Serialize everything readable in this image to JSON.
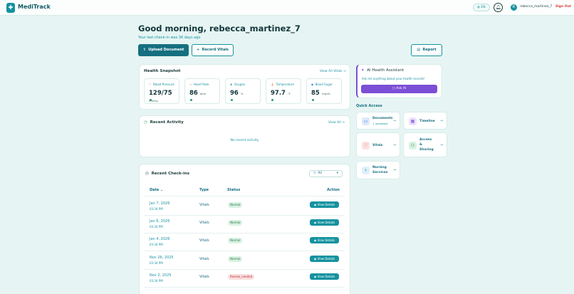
{
  "header": {
    "brand": "MediTrack",
    "lang": "EN",
    "username": "rebecca_martinez_7",
    "signout": "Sign Out",
    "avatar_initial": "R"
  },
  "greeting": {
    "title": "Good morning, rebecca_martinez_7",
    "subtitle": "Your last check-in was 36 days ago"
  },
  "actions": {
    "upload": "Upload Document",
    "record": "Record Vitals",
    "report": "Report"
  },
  "snapshot": {
    "title": "Health Snapshot",
    "link": "View All Vitals",
    "vitals": [
      {
        "label": "Blood Pressure",
        "value": "129/75",
        "unit": "mmHg",
        "icon": "heart-icon",
        "color": "#d33b3b"
      },
      {
        "label": "Heart Rate",
        "value": "86",
        "unit": "bpm",
        "icon": "pulse-icon",
        "color": "#e0782b"
      },
      {
        "label": "Oxygen",
        "value": "96",
        "unit": "%",
        "icon": "lungs-icon",
        "color": "#2aa06a"
      },
      {
        "label": "Temperature",
        "value": "97.7",
        "unit": "°F",
        "icon": "thermometer-icon",
        "color": "#e0782b"
      },
      {
        "label": "Blood Sugar",
        "value": "85",
        "unit": "mg/dL",
        "icon": "drop-icon",
        "color": "#3a7bd5"
      }
    ]
  },
  "activity": {
    "title": "Recent Activity",
    "link": "View All",
    "empty": "No recent activity"
  },
  "checkins": {
    "title": "Recent Check-ins",
    "filter": "All",
    "columns": {
      "date": "Date",
      "type": "Type",
      "status": "Status",
      "action": "Action"
    },
    "view_label": "View Details",
    "rows": [
      {
        "date": "Jan 7, 2026",
        "time": "03:34 PM",
        "type": "Vitals",
        "status": "Normal",
        "state": "normal"
      },
      {
        "date": "Jan 6, 2026",
        "time": "03:34 PM",
        "type": "Vitals",
        "status": "Normal",
        "state": "normal"
      },
      {
        "date": "Jan 4, 2026",
        "time": "03:34 PM",
        "type": "Vitals",
        "status": "Normal",
        "state": "normal"
      },
      {
        "date": "Nov 26, 2025",
        "time": "03:34 PM",
        "type": "Vitals",
        "status": "Normal",
        "state": "normal"
      },
      {
        "date": "Nov 2, 2025",
        "time": "03:34 PM",
        "type": "Vitals",
        "status": "Review_needed",
        "state": "review"
      }
    ]
  },
  "assistant": {
    "title": "AI Health Assistant",
    "prompt": "Ask me anything about your health records!",
    "button": "Ask AI"
  },
  "quick_access": {
    "title": "Quick Access",
    "documents": {
      "label": "Documents",
      "sub": "1 uploaded"
    },
    "timeline": "Timeline",
    "vitals": "Vitals",
    "access": [
      "Access",
      "&",
      "Sharing"
    ],
    "nursing": [
      "Nursing",
      "Services"
    ]
  },
  "colors": {
    "brand": "#1592a0",
    "primary_button": "#156f80",
    "accent_purple": "#7b4fd6",
    "danger": "#dd3333"
  }
}
